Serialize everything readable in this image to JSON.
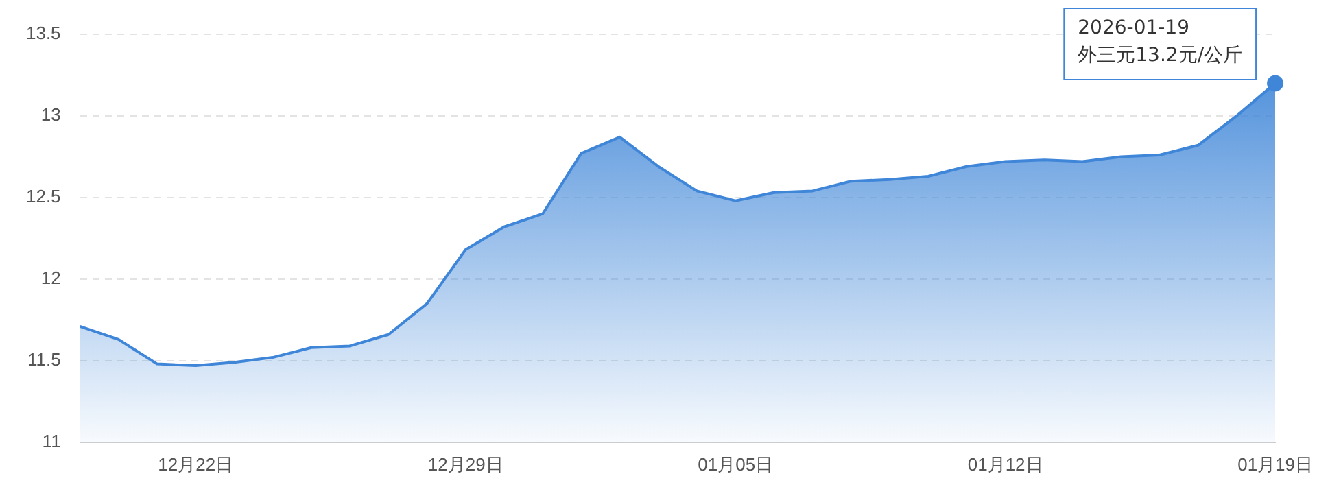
{
  "chart_data": {
    "type": "area",
    "x": [
      "2025-12-19",
      "2025-12-20",
      "2025-12-21",
      "2025-12-22",
      "2025-12-23",
      "2025-12-24",
      "2025-12-25",
      "2025-12-26",
      "2025-12-27",
      "2025-12-28",
      "2025-12-29",
      "2025-12-30",
      "2025-12-31",
      "2026-01-01",
      "2026-01-02",
      "2026-01-03",
      "2026-01-04",
      "2026-01-05",
      "2026-01-06",
      "2026-01-07",
      "2026-01-08",
      "2026-01-09",
      "2026-01-10",
      "2026-01-11",
      "2026-01-12",
      "2026-01-13",
      "2026-01-14",
      "2026-01-15",
      "2026-01-16",
      "2026-01-17",
      "2026-01-18",
      "2026-01-19"
    ],
    "series": [
      {
        "color": "#3f86d8",
        "values": [
          11.71,
          11.63,
          11.48,
          11.47,
          11.49,
          11.52,
          11.58,
          11.59,
          11.66,
          11.85,
          12.18,
          12.32,
          12.4,
          12.77,
          12.87,
          12.69,
          12.54,
          12.48,
          12.53,
          12.54,
          12.6,
          12.61,
          12.63,
          12.69,
          12.72,
          12.73,
          12.72,
          12.75,
          12.76,
          12.82,
          13.0,
          13.2
        ]
      }
    ],
    "xlim": [
      "2025-12-19",
      "2026-01-19"
    ],
    "xticks": [
      {
        "value": "2025-12-22",
        "label": "12月22日"
      },
      {
        "value": "2025-12-29",
        "label": "12月29日"
      },
      {
        "value": "2026-01-05",
        "label": "01月05日"
      },
      {
        "value": "2026-01-12",
        "label": "01月12日"
      },
      {
        "value": "2026-01-19",
        "label": "01月19日"
      }
    ],
    "ylim": [
      11,
      13.5
    ],
    "yticks": [
      11,
      11.5,
      12,
      12.5,
      13,
      13.5
    ],
    "grid": "y",
    "marker": "none",
    "line_style": "solid",
    "legend": false,
    "annotations": [
      {
        "text": "2026-01-19\n外三元13.2元/公斤",
        "x": "2026-01-19",
        "y": 13.2
      }
    ]
  }
}
